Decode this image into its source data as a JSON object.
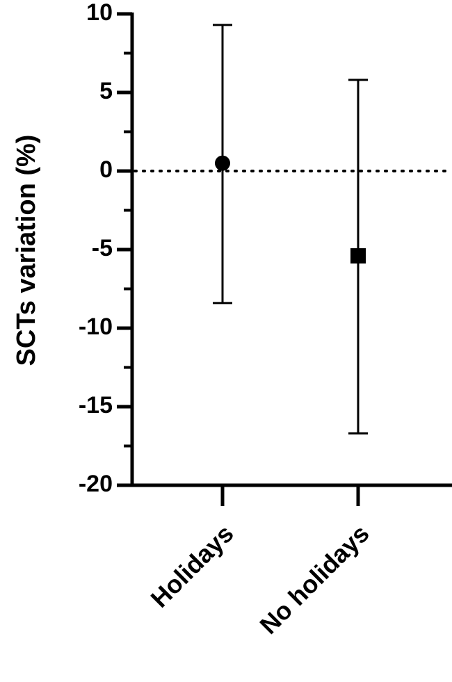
{
  "chart_data": {
    "type": "errorpoint",
    "y_label": "SCTs variation (%)",
    "categories": [
      "Holidays",
      "No holidays"
    ],
    "series": [
      {
        "values": [
          0.5,
          -5.4
        ],
        "lower": [
          -8.4,
          -16.7
        ],
        "upper": [
          9.3,
          5.8
        ],
        "markers": [
          "circle",
          "square"
        ],
        "color": "#000000"
      }
    ],
    "ylim": [
      -20,
      10
    ],
    "yticks": [
      -20,
      -15,
      -10,
      -5,
      0,
      5,
      10
    ],
    "y_minor_ticks": [
      -17.5,
      -12.5,
      -7.5,
      -2.5,
      2.5,
      7.5
    ],
    "reference_line": 0
  }
}
